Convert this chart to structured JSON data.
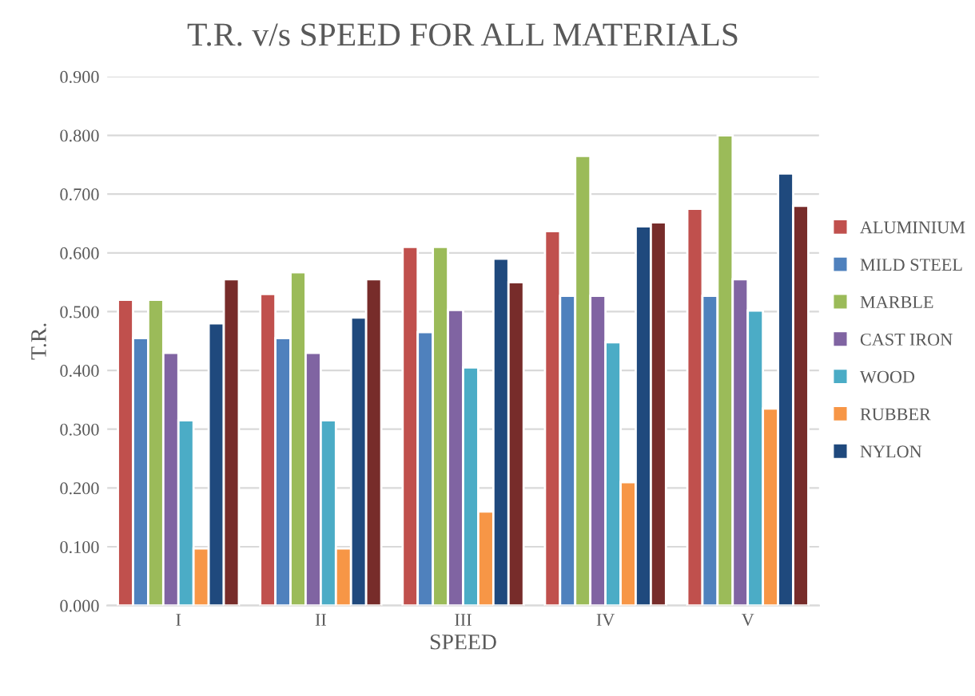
{
  "chart_data": {
    "type": "bar",
    "title": "T.R. v/s SPEED FOR ALL MATERIALS",
    "xlabel": "SPEED",
    "ylabel": "T.R.",
    "categories": [
      "I",
      "II",
      "III",
      "IV",
      "V"
    ],
    "series": [
      {
        "name": "ALUMINIUM",
        "color": "#c0504d",
        "values": [
          0.52,
          0.53,
          0.61,
          0.637,
          0.675
        ]
      },
      {
        "name": "MILD STEEL",
        "color": "#4f81bd",
        "values": [
          0.455,
          0.455,
          0.465,
          0.527,
          0.527
        ]
      },
      {
        "name": "MARBLE",
        "color": "#9bbb59",
        "values": [
          0.52,
          0.567,
          0.61,
          0.765,
          0.8
        ]
      },
      {
        "name": "CAST IRON",
        "color": "#8064a2",
        "values": [
          0.43,
          0.43,
          0.503,
          0.527,
          0.555
        ]
      },
      {
        "name": "WOOD",
        "color": "#4bacc6",
        "values": [
          0.315,
          0.315,
          0.405,
          0.448,
          0.502
        ]
      },
      {
        "name": "RUBBER",
        "color": "#f79646",
        "values": [
          0.097,
          0.097,
          0.16,
          0.21,
          0.335
        ]
      },
      {
        "name": "NYLON",
        "color": "#1f497d",
        "values": [
          0.48,
          0.49,
          0.59,
          0.645,
          0.735
        ]
      },
      {
        "color": "#772c2a",
        "values": [
          0.555,
          0.555,
          0.55,
          0.652,
          0.68
        ]
      }
    ],
    "ylim": [
      0,
      0.9
    ],
    "yticks": [
      {
        "value": 0,
        "label": "0.000"
      },
      {
        "value": 0.1,
        "label": "0.100"
      },
      {
        "value": 0.2,
        "label": "0.200"
      },
      {
        "value": 0.3,
        "label": "0.300"
      },
      {
        "value": 0.4,
        "label": "0.400"
      },
      {
        "value": 0.5,
        "label": "0.500"
      },
      {
        "value": 0.6,
        "label": "0.600"
      },
      {
        "value": 0.7,
        "label": "0.700"
      },
      {
        "value": 0.8,
        "label": "0.800"
      },
      {
        "value": 0.9,
        "label": "0.900"
      }
    ],
    "grid": "y",
    "legend": "right"
  }
}
